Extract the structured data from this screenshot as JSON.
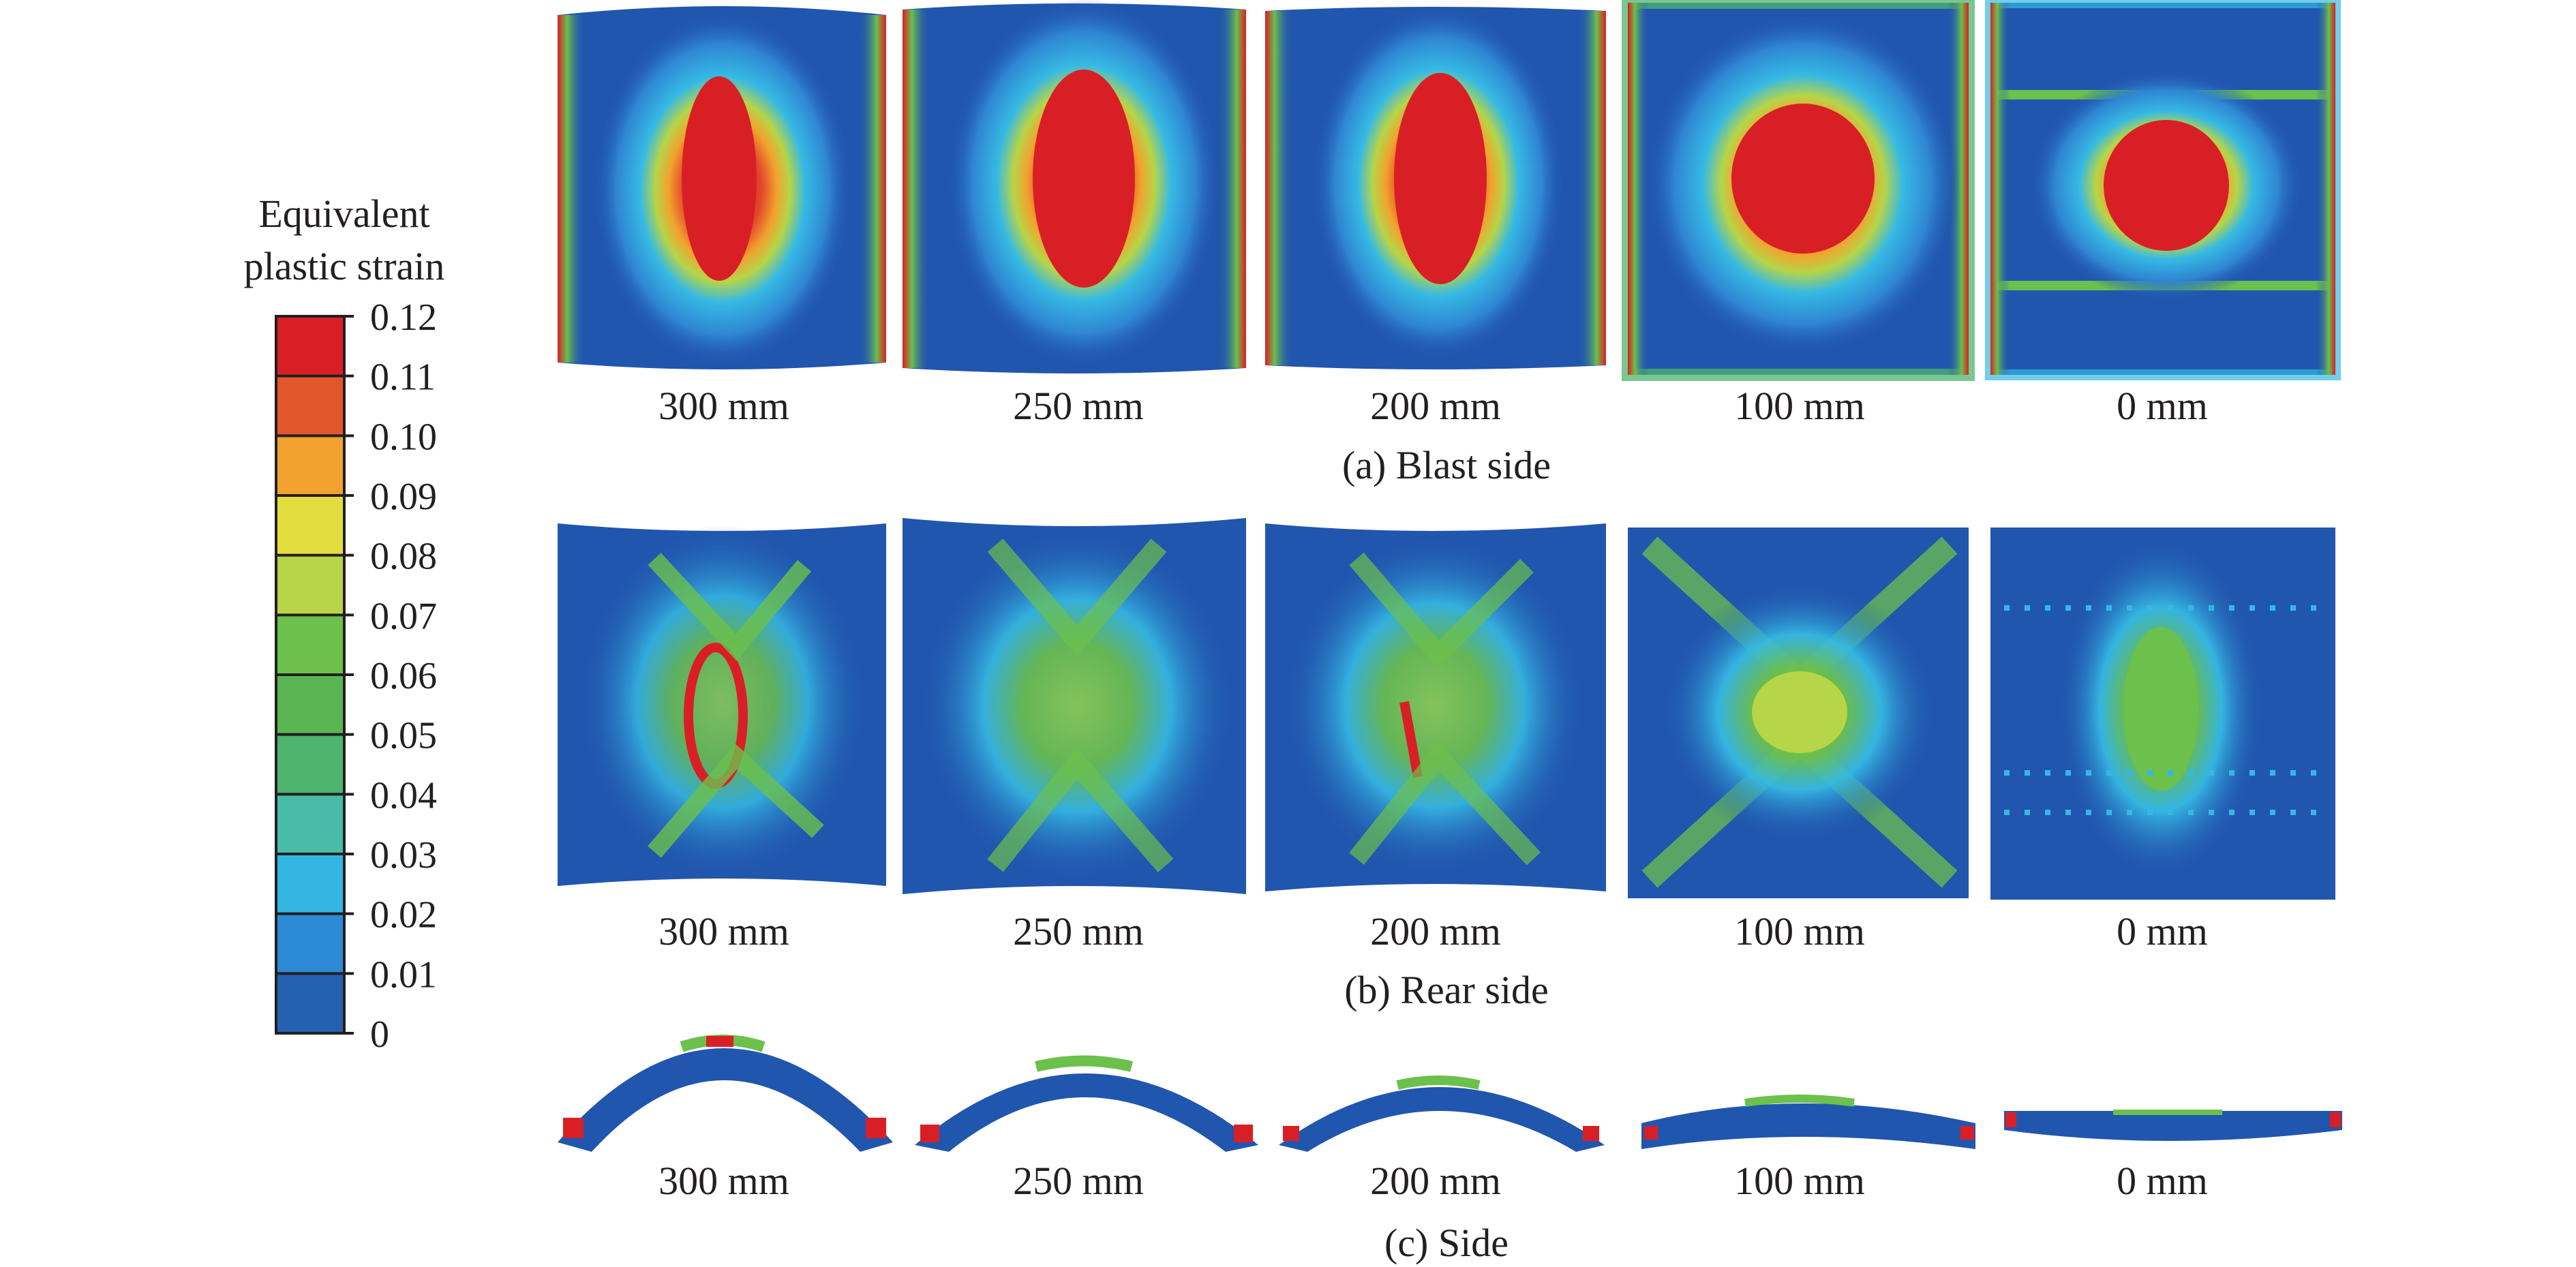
{
  "legend": {
    "title_line1": "Equivalent",
    "title_line2": "plastic strain",
    "ticks": [
      "0.12",
      "0.11",
      "0.10",
      "0.09",
      "0.08",
      "0.07",
      "0.06",
      "0.05",
      "0.04",
      "0.03",
      "0.02",
      "0.01",
      "0"
    ],
    "band_colors_top_to_bottom": [
      "#d91f26",
      "#e2562b",
      "#f2a22e",
      "#e4dd3f",
      "#b6d548",
      "#6cc04c",
      "#5ab653",
      "#4eb46e",
      "#48bca7",
      "#33b7e2",
      "#2d8bd5",
      "#2561b1"
    ]
  },
  "rows": {
    "blast": {
      "caption": "(a) Blast side",
      "labels": [
        "300 mm",
        "250 mm",
        "200 mm",
        "100 mm",
        "0 mm"
      ]
    },
    "rear": {
      "caption": "(b) Rear side",
      "labels": [
        "300 mm",
        "250 mm",
        "200 mm",
        "100 mm",
        "0 mm"
      ]
    },
    "side": {
      "caption": "(c) Side",
      "labels": [
        "300 mm",
        "250 mm",
        "200 mm",
        "100 mm",
        "0 mm"
      ]
    }
  },
  "colors": {
    "base_blue": "#2156ae",
    "cyan": "#35b9e4",
    "green": "#6cc04c",
    "yellow": "#e4dd3f",
    "orange": "#f2a22e",
    "red": "#d91f26"
  }
}
